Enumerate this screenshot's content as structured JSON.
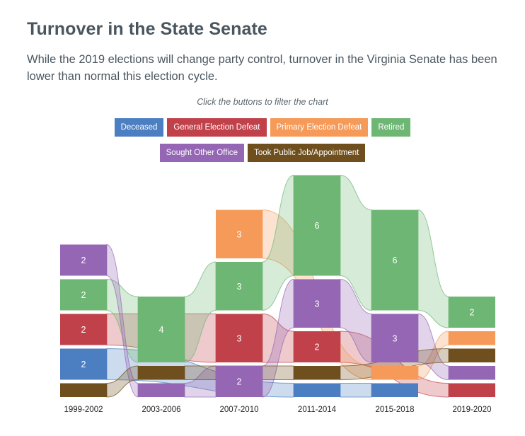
{
  "header": {
    "title": "Turnover in the State Senate",
    "subtitle": "While the 2019 elections will change party control, turnover in the Virginia Senate has been lower than normal this election cycle.",
    "hint": "Click the buttons to filter the chart"
  },
  "filters": [
    {
      "id": "deceased",
      "label": "Deceased",
      "color": "#4c7fc2"
    },
    {
      "id": "general",
      "label": "General Election Defeat",
      "color": "#c1414a"
    },
    {
      "id": "primary",
      "label": "Primary Election Defeat",
      "color": "#f59a58"
    },
    {
      "id": "retired",
      "label": "Retired",
      "color": "#6db673"
    },
    {
      "id": "sought",
      "label": "Sought Other Office",
      "color": "#9466b4"
    },
    {
      "id": "public",
      "label": "Took Public Job/Appointment",
      "color": "#6f4f1d"
    }
  ],
  "chart_data": {
    "type": "sankey",
    "categories": [
      "1999-2002",
      "2003-2006",
      "2007-2010",
      "2011-2014",
      "2015-2018",
      "2019-2020"
    ],
    "series": [
      {
        "name": "Deceased",
        "values": [
          2,
          0,
          0,
          1,
          1,
          0
        ]
      },
      {
        "name": "General Election Defeat",
        "values": [
          2,
          0,
          3,
          2,
          0,
          1
        ]
      },
      {
        "name": "Primary Election Defeat",
        "values": [
          0,
          0,
          3,
          0,
          1,
          1
        ]
      },
      {
        "name": "Retired",
        "values": [
          2,
          4,
          3,
          6,
          6,
          2
        ]
      },
      {
        "name": "Sought Other Office",
        "values": [
          2,
          1,
          2,
          3,
          3,
          1
        ]
      },
      {
        "name": "Took Public Job/Appointment",
        "values": [
          1,
          1,
          0,
          1,
          0,
          1
        ]
      }
    ]
  }
}
